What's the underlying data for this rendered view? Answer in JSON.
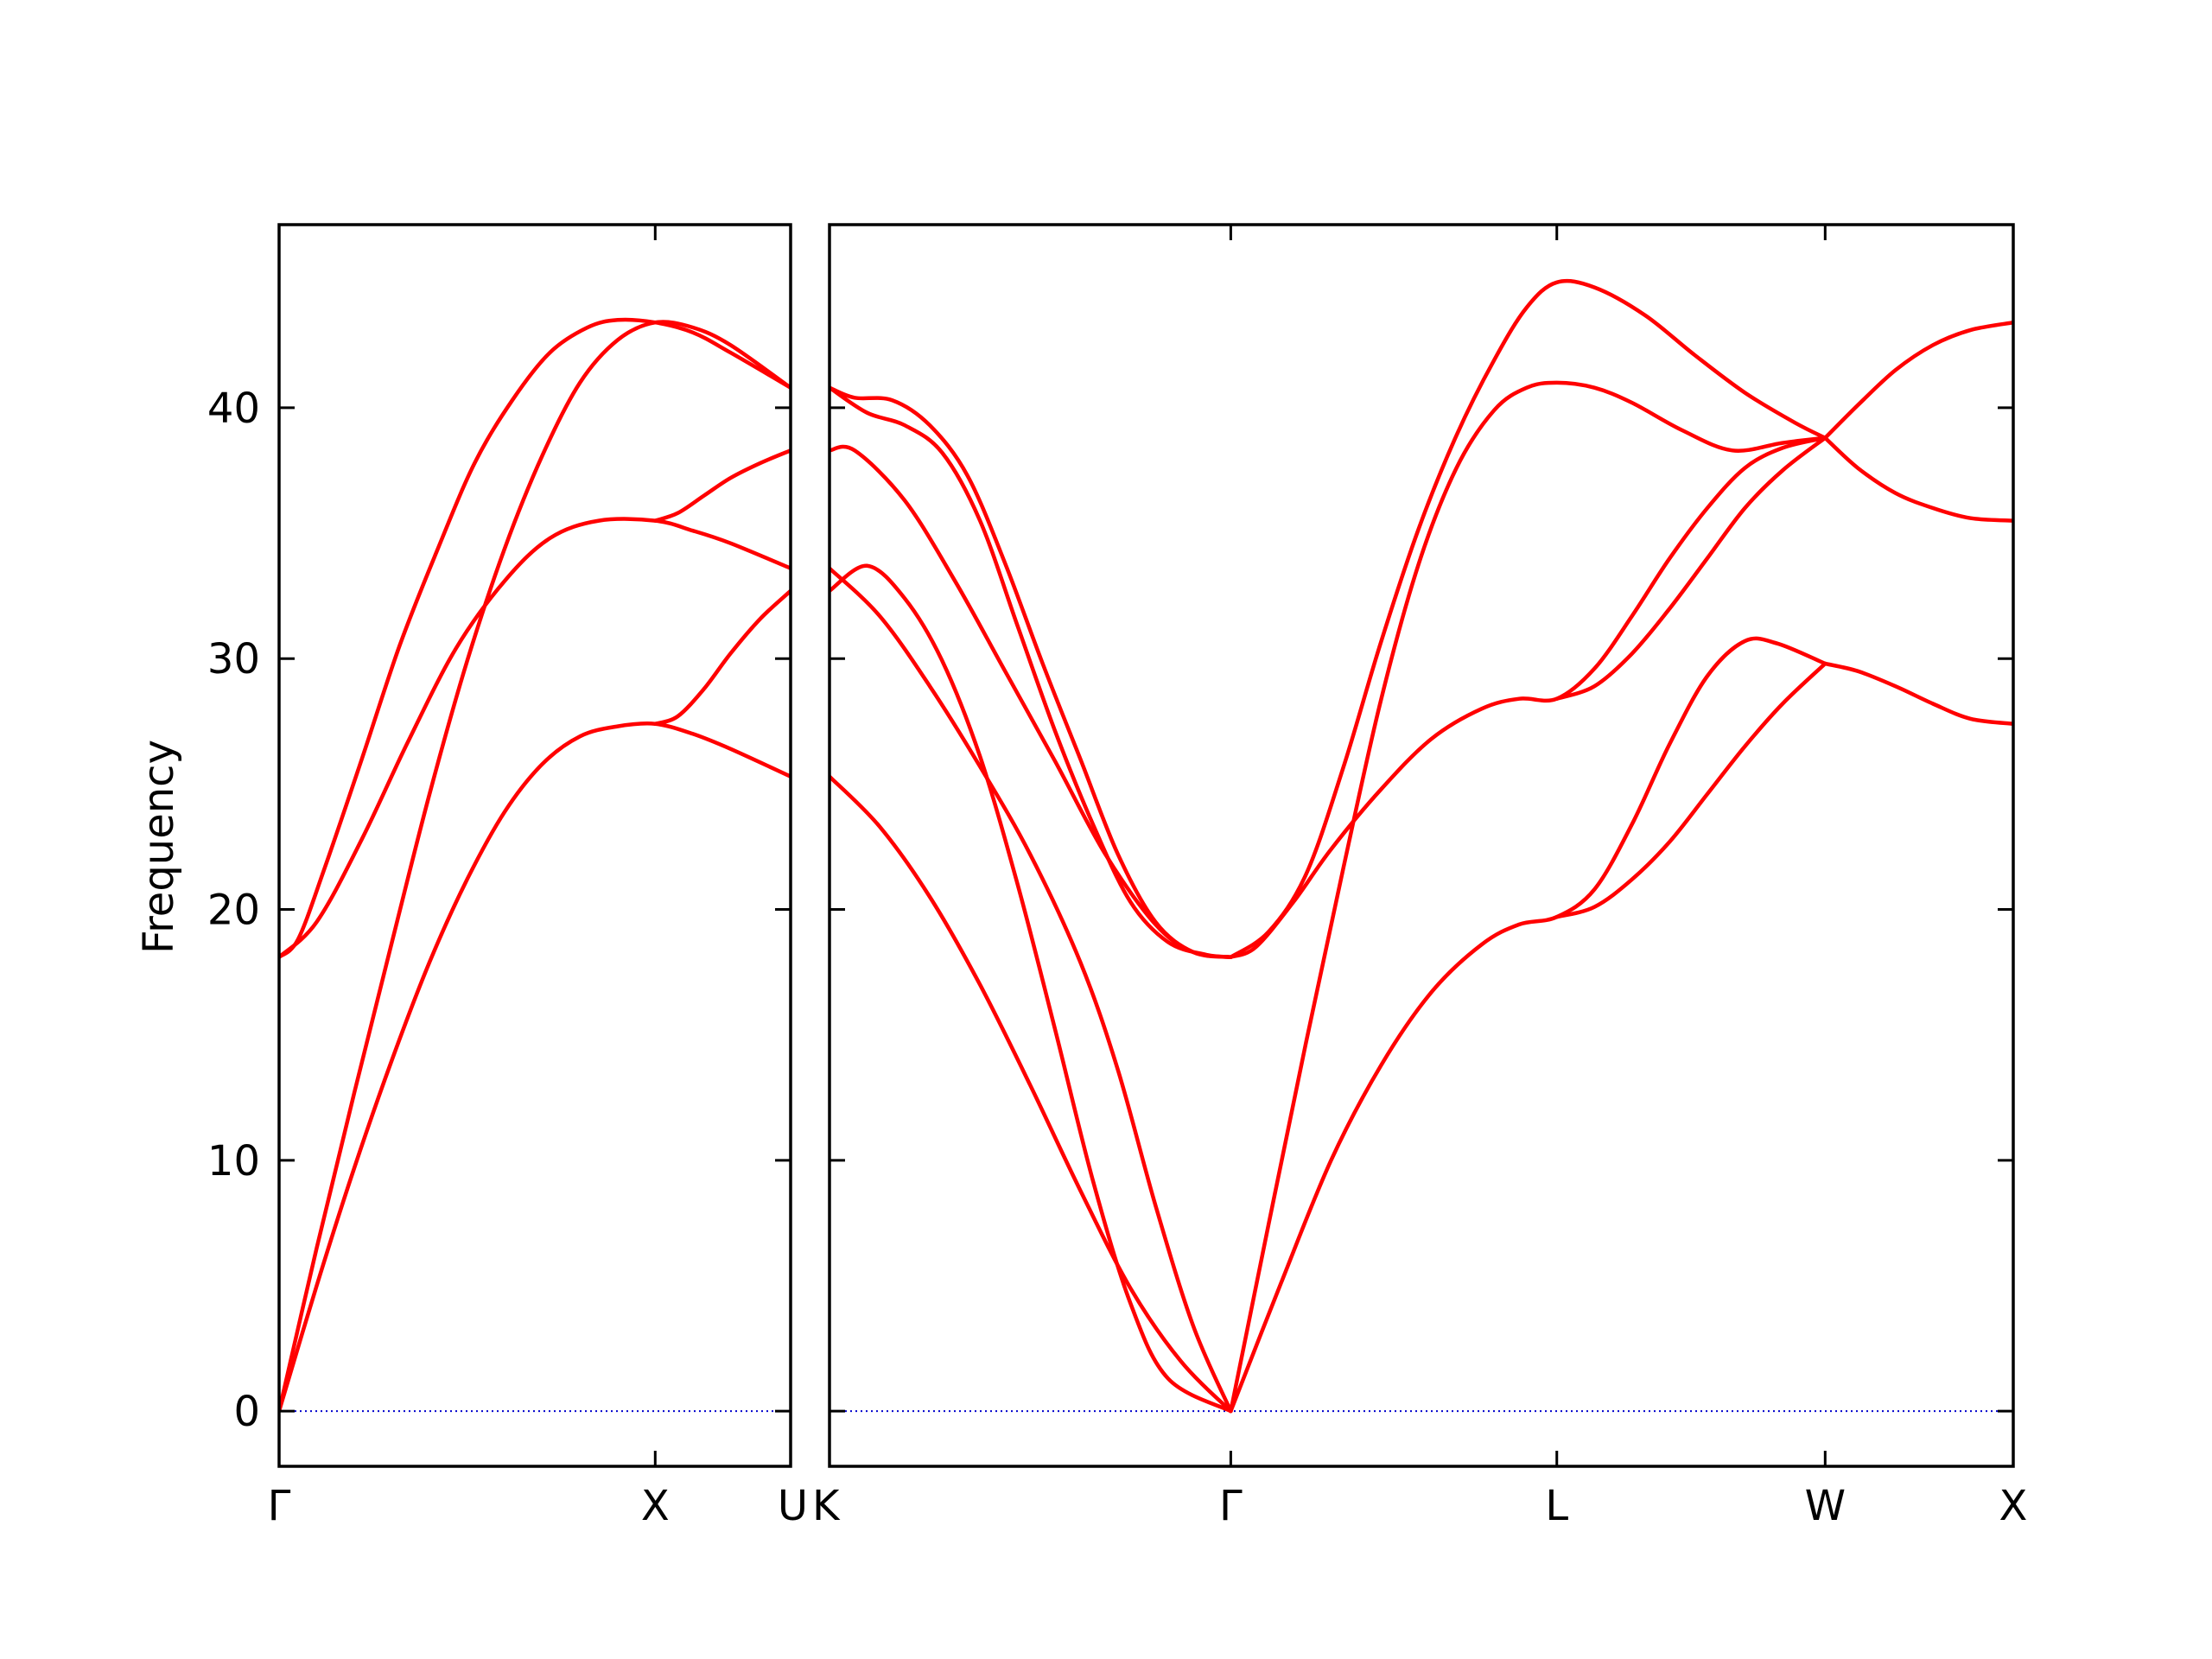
{
  "chart_data": {
    "type": "line",
    "ylabel": "Frequency",
    "ylim": [
      -2.2,
      47.3
    ],
    "yticks": [
      0,
      10,
      20,
      30,
      40
    ],
    "band_color": "#ff0000",
    "zero_line_color": "#0000cc",
    "panels": [
      {
        "xlim": [
          0,
          1.36
        ],
        "labels": [
          {
            "x": 0,
            "text": "Γ"
          },
          {
            "x": 1.0,
            "text": "X"
          },
          {
            "x": 1.36,
            "text": "U"
          }
        ],
        "series": [
          {
            "points": [
              [
                0,
                18.1
              ],
              [
                0.05,
                18.8
              ],
              [
                0.12,
                21.6
              ],
              [
                0.22,
                26.0
              ],
              [
                0.32,
                30.5
              ],
              [
                0.42,
                34.3
              ],
              [
                0.52,
                37.8
              ],
              [
                0.62,
                40.3
              ],
              [
                0.72,
                42.2
              ],
              [
                0.82,
                43.2
              ],
              [
                0.9,
                43.5
              ],
              [
                1.0,
                43.4
              ],
              [
                1.1,
                43.0
              ],
              [
                1.2,
                42.2
              ],
              [
                1.36,
                40.8
              ]
            ]
          },
          {
            "points": [
              [
                0,
                18.1
              ],
              [
                0.1,
                19.5
              ],
              [
                0.22,
                22.8
              ],
              [
                0.34,
                26.6
              ],
              [
                0.47,
                30.4
              ],
              [
                0.6,
                33.1
              ],
              [
                0.72,
                34.8
              ],
              [
                0.85,
                35.5
              ],
              [
                1.0,
                35.5
              ],
              [
                1.1,
                35.1
              ],
              [
                1.2,
                34.6
              ],
              [
                1.36,
                33.6
              ]
            ]
          },
          {
            "points": [
              [
                0,
                0
              ],
              [
                0.1,
                6.5
              ],
              [
                0.2,
                12.7
              ],
              [
                0.3,
                18.7
              ],
              [
                0.4,
                24.6
              ],
              [
                0.5,
                29.9
              ],
              [
                0.6,
                34.4
              ],
              [
                0.7,
                38.1
              ],
              [
                0.8,
                41.0
              ],
              [
                0.9,
                42.7
              ],
              [
                1.0,
                43.4
              ],
              [
                1.1,
                43.2
              ],
              [
                1.2,
                42.5
              ],
              [
                1.36,
                40.8
              ]
            ]
          },
          {
            "points": [
              [
                0,
                0
              ],
              [
                0.1,
                5.0
              ],
              [
                0.2,
                9.7
              ],
              [
                0.3,
                14.0
              ],
              [
                0.4,
                17.9
              ],
              [
                0.5,
                21.2
              ],
              [
                0.6,
                23.9
              ],
              [
                0.7,
                25.8
              ],
              [
                0.8,
                26.9
              ],
              [
                0.9,
                27.3
              ],
              [
                1.0,
                27.4
              ],
              [
                1.1,
                27.0
              ],
              [
                1.2,
                26.4
              ],
              [
                1.36,
                25.3
              ]
            ]
          },
          {
            "points": [
              [
                1.0,
                27.4
              ],
              [
                1.06,
                27.7
              ],
              [
                1.13,
                28.8
              ],
              [
                1.2,
                30.2
              ],
              [
                1.28,
                31.6
              ],
              [
                1.36,
                32.7
              ]
            ]
          },
          {
            "points": [
              [
                1.0,
                35.5
              ],
              [
                1.06,
                35.8
              ],
              [
                1.13,
                36.5
              ],
              [
                1.2,
                37.2
              ],
              [
                1.28,
                37.8
              ],
              [
                1.36,
                38.3
              ]
            ]
          }
        ]
      },
      {
        "xlim": [
          0,
          4.72
        ],
        "labels": [
          {
            "x": 0,
            "text": "K"
          },
          {
            "x": 1.6,
            "text": "Γ"
          },
          {
            "x": 2.9,
            "text": "L"
          },
          {
            "x": 3.97,
            "text": "W"
          },
          {
            "x": 4.72,
            "text": "X"
          }
        ],
        "series": [
          {
            "points": [
              [
                0,
                40.8
              ],
              [
                0.1,
                40.4
              ],
              [
                0.25,
                40.3
              ],
              [
                0.4,
                39.3
              ],
              [
                0.55,
                37.3
              ],
              [
                0.7,
                33.8
              ],
              [
                0.85,
                29.8
              ],
              [
                1.0,
                26.0
              ],
              [
                1.15,
                22.2
              ],
              [
                1.3,
                19.5
              ],
              [
                1.45,
                18.3
              ],
              [
                1.6,
                18.1
              ]
            ]
          },
          {
            "points": [
              [
                0,
                40.8
              ],
              [
                0.15,
                39.8
              ],
              [
                0.3,
                39.3
              ],
              [
                0.45,
                38.2
              ],
              [
                0.6,
                35.5
              ],
              [
                0.75,
                31.3
              ],
              [
                0.9,
                27.1
              ],
              [
                1.05,
                23.4
              ],
              [
                1.2,
                20.3
              ],
              [
                1.35,
                18.7
              ],
              [
                1.5,
                18.2
              ],
              [
                1.6,
                18.1
              ]
            ]
          },
          {
            "points": [
              [
                0,
                38.3
              ],
              [
                0.1,
                38.3
              ],
              [
                0.3,
                36.3
              ],
              [
                0.5,
                33.1
              ],
              [
                0.7,
                29.5
              ],
              [
                0.9,
                25.9
              ],
              [
                1.1,
                22.2
              ],
              [
                1.3,
                19.4
              ],
              [
                1.45,
                18.3
              ],
              [
                1.6,
                18.1
              ]
            ]
          },
          {
            "points": [
              [
                0,
                32.7
              ],
              [
                0.15,
                33.7
              ],
              [
                0.3,
                32.4
              ],
              [
                0.45,
                29.9
              ],
              [
                0.6,
                26.1
              ],
              [
                0.75,
                21.0
              ],
              [
                0.9,
                15.2
              ],
              [
                1.05,
                9.2
              ],
              [
                1.2,
                4.3
              ],
              [
                1.35,
                1.3
              ],
              [
                1.6,
                0
              ]
            ]
          },
          {
            "points": [
              [
                0,
                33.6
              ],
              [
                0.2,
                31.7
              ],
              [
                0.4,
                28.9
              ],
              [
                0.6,
                25.7
              ],
              [
                0.8,
                22.2
              ],
              [
                1.0,
                17.9
              ],
              [
                1.15,
                13.6
              ],
              [
                1.3,
                8.2
              ],
              [
                1.45,
                3.4
              ],
              [
                1.6,
                0
              ]
            ]
          },
          {
            "points": [
              [
                0,
                25.3
              ],
              [
                0.2,
                23.3
              ],
              [
                0.4,
                20.5
              ],
              [
                0.6,
                17.0
              ],
              [
                0.8,
                13.0
              ],
              [
                1.0,
                8.8
              ],
              [
                1.2,
                4.9
              ],
              [
                1.4,
                2.0
              ],
              [
                1.6,
                0
              ]
            ]
          },
          {
            "points": [
              [
                1.6,
                18.1
              ],
              [
                1.7,
                18.5
              ],
              [
                1.85,
                20.3
              ],
              [
                2.0,
                22.4
              ],
              [
                2.2,
                24.8
              ],
              [
                2.4,
                26.8
              ],
              [
                2.6,
                28.0
              ],
              [
                2.75,
                28.4
              ],
              [
                2.9,
                28.4
              ],
              [
                3.05,
                29.6
              ],
              [
                3.2,
                31.7
              ],
              [
                3.35,
                34.0
              ],
              [
                3.5,
                36.0
              ],
              [
                3.65,
                37.6
              ],
              [
                3.8,
                38.4
              ],
              [
                3.97,
                38.8
              ]
            ]
          },
          {
            "points": [
              [
                1.6,
                18.1
              ],
              [
                1.75,
                19.1
              ],
              [
                1.9,
                21.4
              ],
              [
                2.05,
                25.7
              ],
              [
                2.2,
                30.7
              ],
              [
                2.35,
                35.2
              ],
              [
                2.5,
                38.9
              ],
              [
                2.65,
                41.9
              ],
              [
                2.78,
                44.0
              ],
              [
                2.9,
                45.0
              ],
              [
                3.05,
                44.8
              ],
              [
                3.25,
                43.7
              ],
              [
                3.45,
                42.1
              ],
              [
                3.65,
                40.6
              ],
              [
                3.85,
                39.4
              ],
              [
                3.97,
                38.8
              ]
            ]
          },
          {
            "points": [
              [
                1.6,
                0
              ],
              [
                1.75,
                7.4
              ],
              [
                1.9,
                14.7
              ],
              [
                2.05,
                21.7
              ],
              [
                2.2,
                28.4
              ],
              [
                2.35,
                33.8
              ],
              [
                2.5,
                37.6
              ],
              [
                2.65,
                39.9
              ],
              [
                2.78,
                40.8
              ],
              [
                2.9,
                41.0
              ],
              [
                3.05,
                40.8
              ],
              [
                3.2,
                40.2
              ],
              [
                3.4,
                39.1
              ],
              [
                3.6,
                38.3
              ],
              [
                3.8,
                38.6
              ],
              [
                3.97,
                38.8
              ]
            ]
          },
          {
            "points": [
              [
                1.6,
                0
              ],
              [
                1.8,
                5.1
              ],
              [
                2.0,
                10.0
              ],
              [
                2.2,
                13.8
              ],
              [
                2.4,
                16.7
              ],
              [
                2.6,
                18.6
              ],
              [
                2.75,
                19.4
              ],
              [
                2.9,
                19.7
              ],
              [
                3.05,
                20.8
              ],
              [
                3.2,
                23.4
              ],
              [
                3.35,
                26.6
              ],
              [
                3.5,
                29.3
              ],
              [
                3.65,
                30.7
              ],
              [
                3.78,
                30.6
              ],
              [
                3.97,
                29.8
              ]
            ]
          },
          {
            "points": [
              [
                2.9,
                19.7
              ],
              [
                3.05,
                20.1
              ],
              [
                3.2,
                21.2
              ],
              [
                3.35,
                22.7
              ],
              [
                3.5,
                24.6
              ],
              [
                3.65,
                26.5
              ],
              [
                3.8,
                28.2
              ],
              [
                3.97,
                29.8
              ]
            ]
          },
          {
            "points": [
              [
                2.9,
                28.4
              ],
              [
                3.05,
                28.9
              ],
              [
                3.2,
                30.2
              ],
              [
                3.35,
                32.0
              ],
              [
                3.5,
                34.0
              ],
              [
                3.65,
                36.0
              ],
              [
                3.8,
                37.5
              ],
              [
                3.97,
                38.8
              ]
            ]
          },
          {
            "points": [
              [
                3.97,
                38.8
              ],
              [
                4.1,
                40.1
              ],
              [
                4.25,
                41.5
              ],
              [
                4.4,
                42.5
              ],
              [
                4.55,
                43.1
              ],
              [
                4.72,
                43.4
              ]
            ]
          },
          {
            "points": [
              [
                3.97,
                38.8
              ],
              [
                4.1,
                37.6
              ],
              [
                4.25,
                36.6
              ],
              [
                4.4,
                36.0
              ],
              [
                4.55,
                35.6
              ],
              [
                4.72,
                35.5
              ]
            ]
          },
          {
            "points": [
              [
                3.97,
                29.8
              ],
              [
                4.1,
                29.5
              ],
              [
                4.25,
                28.9
              ],
              [
                4.4,
                28.2
              ],
              [
                4.55,
                27.6
              ],
              [
                4.72,
                27.4
              ]
            ]
          }
        ]
      }
    ]
  }
}
